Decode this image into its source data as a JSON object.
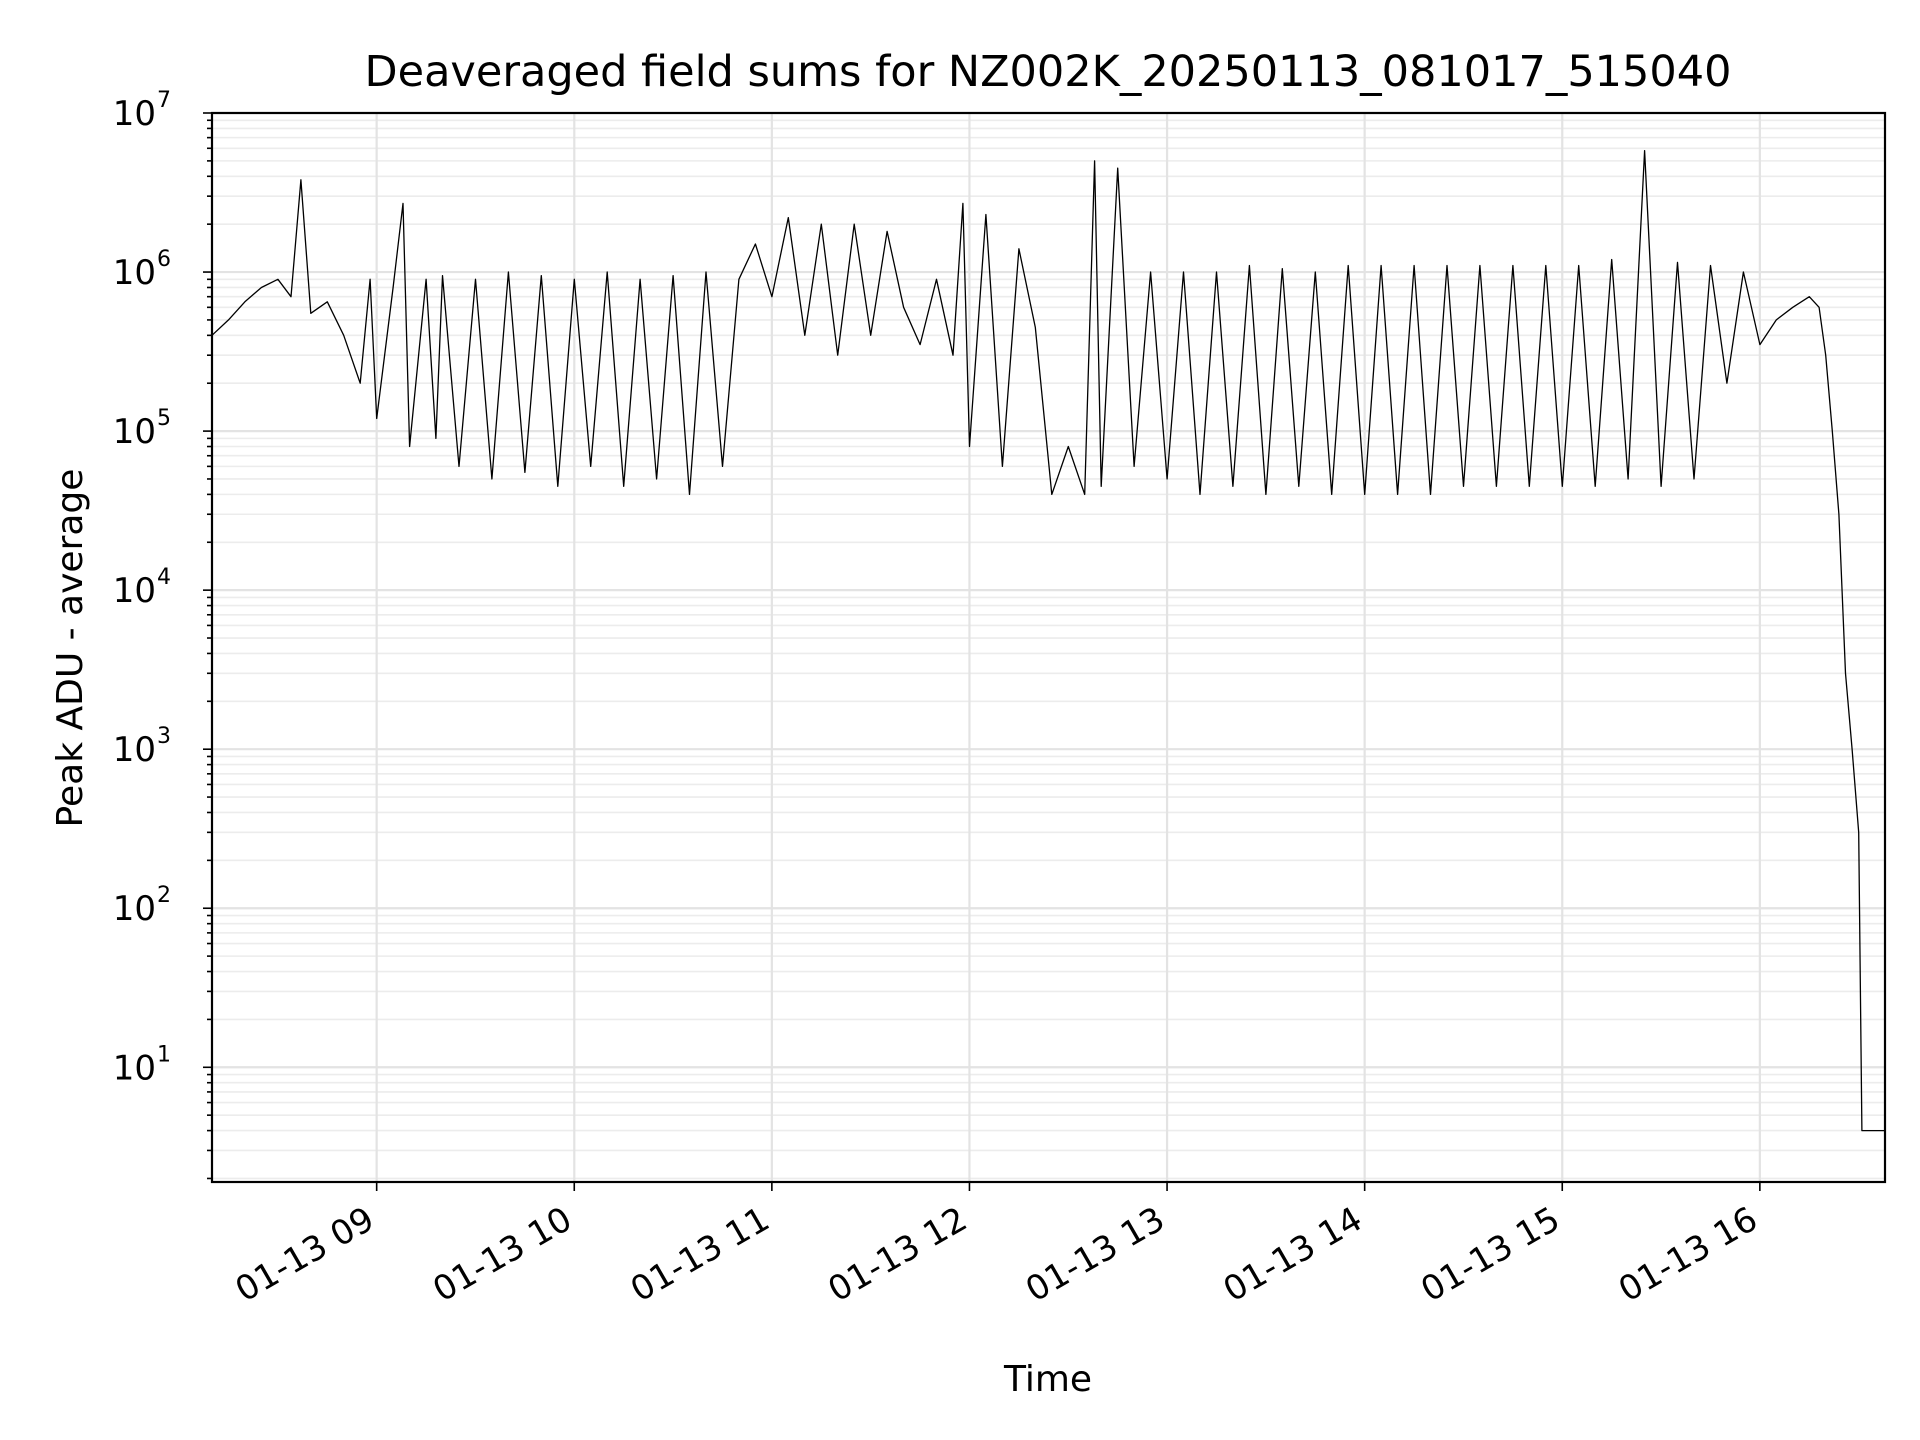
{
  "chart_data": {
    "type": "line",
    "title": "Deaveraged field sums for NZ002K_20250113_081017_515040",
    "xlabel": "Time",
    "ylabel": "Peak ADU - average",
    "yscale": "log",
    "ylim": [
      1.9,
      10000000
    ],
    "xlim": [
      "2025-01-13 08:10",
      "2025-01-13 16:38"
    ],
    "grid": true,
    "legend": "none",
    "line_color": "#000000",
    "x_ticks": [
      {
        "value": "2025-01-13 09:00",
        "label": "01-13 09"
      },
      {
        "value": "2025-01-13 10:00",
        "label": "01-13 10"
      },
      {
        "value": "2025-01-13 11:00",
        "label": "01-13 11"
      },
      {
        "value": "2025-01-13 12:00",
        "label": "01-13 12"
      },
      {
        "value": "2025-01-13 13:00",
        "label": "01-13 13"
      },
      {
        "value": "2025-01-13 14:00",
        "label": "01-13 14"
      },
      {
        "value": "2025-01-13 15:00",
        "label": "01-13 15"
      },
      {
        "value": "2025-01-13 16:00",
        "label": "01-13 16"
      }
    ],
    "y_ticks": [
      {
        "value": 10,
        "base": "10",
        "exp": "1"
      },
      {
        "value": 100,
        "base": "10",
        "exp": "2"
      },
      {
        "value": 1000,
        "base": "10",
        "exp": "3"
      },
      {
        "value": 10000,
        "base": "10",
        "exp": "4"
      },
      {
        "value": 100000,
        "base": "10",
        "exp": "5"
      },
      {
        "value": 1000000,
        "base": "10",
        "exp": "6"
      },
      {
        "value": 10000000,
        "base": "10",
        "exp": "7"
      }
    ],
    "series": [
      {
        "x": [
          "2025-01-13 08:10",
          "2025-01-13 08:15",
          "2025-01-13 08:20",
          "2025-01-13 08:25",
          "2025-01-13 08:30",
          "2025-01-13 08:34",
          "2025-01-13 08:37",
          "2025-01-13 08:40",
          "2025-01-13 08:45",
          "2025-01-13 08:50",
          "2025-01-13 08:55",
          "2025-01-13 08:58",
          "2025-01-13 09:00",
          "2025-01-13 09:05",
          "2025-01-13 09:08",
          "2025-01-13 09:10",
          "2025-01-13 09:15",
          "2025-01-13 09:18",
          "2025-01-13 09:20",
          "2025-01-13 09:25",
          "2025-01-13 09:30",
          "2025-01-13 09:35",
          "2025-01-13 09:40",
          "2025-01-13 09:45",
          "2025-01-13 09:50",
          "2025-01-13 09:55",
          "2025-01-13 10:00",
          "2025-01-13 10:05",
          "2025-01-13 10:10",
          "2025-01-13 10:15",
          "2025-01-13 10:20",
          "2025-01-13 10:25",
          "2025-01-13 10:30",
          "2025-01-13 10:35",
          "2025-01-13 10:40",
          "2025-01-13 10:45",
          "2025-01-13 10:50",
          "2025-01-13 10:55",
          "2025-01-13 11:00",
          "2025-01-13 11:05",
          "2025-01-13 11:10",
          "2025-01-13 11:15",
          "2025-01-13 11:20",
          "2025-01-13 11:25",
          "2025-01-13 11:30",
          "2025-01-13 11:35",
          "2025-01-13 11:40",
          "2025-01-13 11:45",
          "2025-01-13 11:50",
          "2025-01-13 11:55",
          "2025-01-13 11:58",
          "2025-01-13 12:00",
          "2025-01-13 12:05",
          "2025-01-13 12:10",
          "2025-01-13 12:15",
          "2025-01-13 12:20",
          "2025-01-13 12:25",
          "2025-01-13 12:30",
          "2025-01-13 12:35",
          "2025-01-13 12:38",
          "2025-01-13 12:40",
          "2025-01-13 12:45",
          "2025-01-13 12:50",
          "2025-01-13 12:55",
          "2025-01-13 13:00",
          "2025-01-13 13:05",
          "2025-01-13 13:10",
          "2025-01-13 13:15",
          "2025-01-13 13:20",
          "2025-01-13 13:25",
          "2025-01-13 13:30",
          "2025-01-13 13:35",
          "2025-01-13 13:40",
          "2025-01-13 13:45",
          "2025-01-13 13:50",
          "2025-01-13 13:55",
          "2025-01-13 14:00",
          "2025-01-13 14:05",
          "2025-01-13 14:10",
          "2025-01-13 14:15",
          "2025-01-13 14:20",
          "2025-01-13 14:25",
          "2025-01-13 14:30",
          "2025-01-13 14:35",
          "2025-01-13 14:40",
          "2025-01-13 14:45",
          "2025-01-13 14:50",
          "2025-01-13 14:55",
          "2025-01-13 15:00",
          "2025-01-13 15:05",
          "2025-01-13 15:10",
          "2025-01-13 15:15",
          "2025-01-13 15:20",
          "2025-01-13 15:25",
          "2025-01-13 15:30",
          "2025-01-13 15:35",
          "2025-01-13 15:40",
          "2025-01-13 15:45",
          "2025-01-13 15:50",
          "2025-01-13 15:55",
          "2025-01-13 16:00",
          "2025-01-13 16:05",
          "2025-01-13 16:10",
          "2025-01-13 16:15",
          "2025-01-13 16:18",
          "2025-01-13 16:20",
          "2025-01-13 16:22",
          "2025-01-13 16:24",
          "2025-01-13 16:26",
          "2025-01-13 16:28",
          "2025-01-13 16:30",
          "2025-01-13 16:31",
          "2025-01-13 16:32",
          "2025-01-13 16:33",
          "2025-01-13 16:34",
          "2025-01-13 16:35",
          "2025-01-13 16:36",
          "2025-01-13 16:37",
          "2025-01-13 16:38"
        ],
        "y": [
          400000,
          500000,
          650000,
          800000,
          900000,
          700000,
          3800000,
          550000,
          650000,
          400000,
          200000,
          900000,
          120000,
          800000,
          2700000,
          80000,
          900000,
          90000,
          950000,
          60000,
          900000,
          50000,
          1000000,
          55000,
          950000,
          45000,
          900000,
          60000,
          1000000,
          45000,
          900000,
          50000,
          950000,
          40000,
          1000000,
          60000,
          900000,
          1500000,
          700000,
          2200000,
          400000,
          2000000,
          300000,
          2000000,
          400000,
          1800000,
          600000,
          350000,
          900000,
          300000,
          2700000,
          80000,
          2300000,
          60000,
          1400000,
          450000,
          40000,
          80000,
          40000,
          5000000,
          45000,
          4500000,
          60000,
          1000000,
          50000,
          1000000,
          40000,
          1000000,
          45000,
          1100000,
          40000,
          1050000,
          45000,
          1000000,
          40000,
          1100000,
          40000,
          1100000,
          40000,
          1100000,
          40000,
          1100000,
          45000,
          1100000,
          45000,
          1100000,
          45000,
          1100000,
          45000,
          1100000,
          45000,
          1200000,
          50000,
          5800000,
          45000,
          1150000,
          50000,
          1100000,
          200000,
          1000000,
          350000,
          500000,
          600000,
          700000,
          600000,
          300000,
          100000,
          30000,
          3000,
          1000,
          300,
          4,
          4,
          4,
          4,
          4,
          4,
          4,
          4
        ]
      }
    ]
  }
}
